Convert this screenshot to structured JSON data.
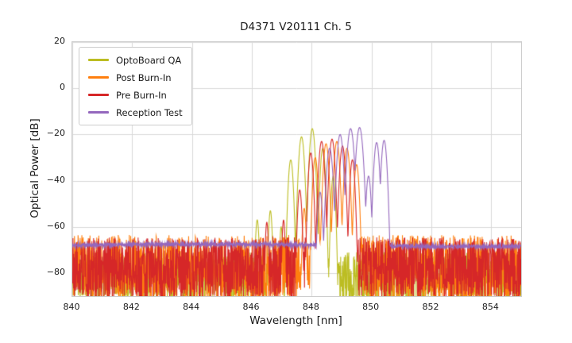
{
  "chart_data": {
    "type": "line",
    "title": "D4371 V20111 Ch. 5",
    "xlabel": "Wavelength [nm]",
    "ylabel": "Optical Power [dB]",
    "xlim": [
      840,
      855
    ],
    "ylim": [
      -90,
      20
    ],
    "xticks": [
      840,
      842,
      844,
      846,
      848,
      850,
      852,
      854
    ],
    "yticks": [
      20,
      0,
      -20,
      -40,
      -60,
      -80
    ],
    "grid": true,
    "grid_color": "#d9d9d9",
    "legend_position": "upper left",
    "series": [
      {
        "name": "OptoBoard QA",
        "color": "#bcbd22",
        "seed": 11,
        "noise": {
          "type": "spiky",
          "top": -71,
          "depth": 22
        },
        "peaks": [
          {
            "c": 846.18,
            "h": -57,
            "w": 0.06
          },
          {
            "c": 846.62,
            "h": -53,
            "w": 0.06
          },
          {
            "c": 846.98,
            "h": -60,
            "w": 0.05
          },
          {
            "c": 847.3,
            "h": -31,
            "w": 0.08
          },
          {
            "c": 847.66,
            "h": -21,
            "w": 0.09
          },
          {
            "c": 848.02,
            "h": -17.5,
            "w": 0.09
          },
          {
            "c": 848.37,
            "h": -26,
            "w": 0.08
          },
          {
            "c": 848.72,
            "h": -38,
            "w": 0.07
          }
        ]
      },
      {
        "name": "Post Burn-In",
        "color": "#ff7f0e",
        "seed": 22,
        "noise": {
          "type": "spiky",
          "top": -63.5,
          "depth": 29
        },
        "peaks": [
          {
            "c": 847.75,
            "h": -52,
            "w": 0.06
          },
          {
            "c": 848.12,
            "h": -30,
            "w": 0.08
          },
          {
            "c": 848.48,
            "h": -24,
            "w": 0.09
          },
          {
            "c": 848.84,
            "h": -23,
            "w": 0.09
          },
          {
            "c": 849.18,
            "h": -26,
            "w": 0.09
          },
          {
            "c": 849.5,
            "h": -33,
            "w": 0.08
          }
        ]
      },
      {
        "name": "Pre Burn-In",
        "color": "#d62728",
        "seed": 33,
        "noise": {
          "type": "spiky",
          "top": -64.5,
          "depth": 27
        },
        "peaks": [
          {
            "c": 846.5,
            "h": -58,
            "w": 0.05
          },
          {
            "c": 847.06,
            "h": -57,
            "w": 0.05
          },
          {
            "c": 847.6,
            "h": -44,
            "w": 0.07
          },
          {
            "c": 847.97,
            "h": -28,
            "w": 0.08
          },
          {
            "c": 848.33,
            "h": -23,
            "w": 0.09
          },
          {
            "c": 848.68,
            "h": -22,
            "w": 0.09
          },
          {
            "c": 849.03,
            "h": -25,
            "w": 0.09
          },
          {
            "c": 849.36,
            "h": -31,
            "w": 0.08
          }
        ]
      },
      {
        "name": "Reception Test",
        "color": "#9467bd",
        "seed": 44,
        "noise": {
          "type": "band",
          "base": -68,
          "ripple": 1.6
        },
        "peaks": [
          {
            "c": 848.28,
            "h": -45,
            "w": 0.08
          },
          {
            "c": 848.6,
            "h": -26,
            "w": 0.1
          },
          {
            "c": 848.95,
            "h": -20,
            "w": 0.1
          },
          {
            "c": 849.3,
            "h": -17.5,
            "w": 0.11
          },
          {
            "c": 849.6,
            "h": -17,
            "w": 0.11
          },
          {
            "c": 849.9,
            "h": -38,
            "w": 0.08
          },
          {
            "c": 850.17,
            "h": -23.5,
            "w": 0.09
          },
          {
            "c": 850.42,
            "h": -22.5,
            "w": 0.09
          }
        ]
      }
    ]
  }
}
